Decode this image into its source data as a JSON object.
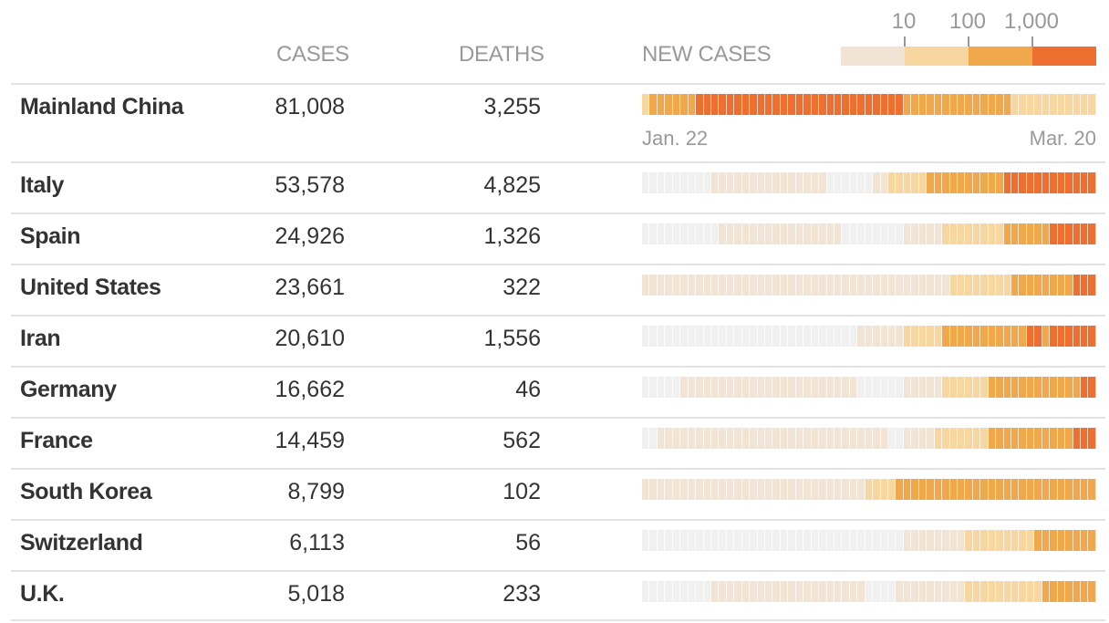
{
  "header": {
    "cases": "CASES",
    "deaths": "DEATHS",
    "new_cases": "NEW CASES"
  },
  "legend": {
    "labels": [
      "10",
      "100",
      "1,000"
    ],
    "colors": [
      "#f1e4d4",
      "#f8d6a0",
      "#f0a84a",
      "#ee7031"
    ]
  },
  "level_colors": [
    "#f0f0f0",
    "#f1e4d4",
    "#f8d6a0",
    "#f0a84a",
    "#ee7031"
  ],
  "date_start": "Jan. 22",
  "date_end": "Mar. 20",
  "chart_data": {
    "type": "heatmap",
    "title": "New cases",
    "x_range": [
      "Jan. 22",
      "Mar. 20"
    ],
    "levels": [
      "<1",
      "1-10",
      "10-100",
      "100-1,000",
      ">1,000"
    ],
    "rows": [
      {
        "country": "Mainland China",
        "cases": "81,008",
        "deaths": "3,255",
        "runs": [
          [
            2,
            1
          ],
          [
            3,
            6
          ],
          [
            4,
            27
          ],
          [
            3,
            14
          ],
          [
            2,
            11
          ]
        ]
      },
      {
        "country": "Italy",
        "cases": "53,578",
        "deaths": "4,825",
        "runs": [
          [
            0,
            9
          ],
          [
            1,
            15
          ],
          [
            0,
            6
          ],
          [
            1,
            2
          ],
          [
            2,
            5
          ],
          [
            3,
            10
          ],
          [
            4,
            12
          ]
        ]
      },
      {
        "country": "Spain",
        "cases": "24,926",
        "deaths": "1,326",
        "runs": [
          [
            0,
            10
          ],
          [
            1,
            16
          ],
          [
            0,
            8
          ],
          [
            1,
            5
          ],
          [
            2,
            8
          ],
          [
            3,
            6
          ],
          [
            4,
            6
          ]
        ]
      },
      {
        "country": "United States",
        "cases": "23,661",
        "deaths": "322",
        "runs": [
          [
            1,
            40
          ],
          [
            2,
            8
          ],
          [
            3,
            8
          ],
          [
            4,
            3
          ]
        ]
      },
      {
        "country": "Iran",
        "cases": "20,610",
        "deaths": "1,556",
        "runs": [
          [
            0,
            28
          ],
          [
            1,
            6
          ],
          [
            2,
            5
          ],
          [
            3,
            11
          ],
          [
            4,
            2
          ],
          [
            3,
            1
          ],
          [
            4,
            6
          ]
        ]
      },
      {
        "country": "Germany",
        "cases": "16,662",
        "deaths": "46",
        "runs": [
          [
            0,
            5
          ],
          [
            1,
            23
          ],
          [
            0,
            6
          ],
          [
            1,
            5
          ],
          [
            2,
            6
          ],
          [
            3,
            12
          ],
          [
            4,
            2
          ]
        ]
      },
      {
        "country": "France",
        "cases": "14,459",
        "deaths": "562",
        "runs": [
          [
            0,
            2
          ],
          [
            1,
            30
          ],
          [
            0,
            2
          ],
          [
            1,
            4
          ],
          [
            2,
            7
          ],
          [
            3,
            11
          ],
          [
            4,
            3
          ]
        ]
      },
      {
        "country": "South Korea",
        "cases": "8,799",
        "deaths": "102",
        "runs": [
          [
            1,
            29
          ],
          [
            2,
            4
          ],
          [
            3,
            26
          ]
        ]
      },
      {
        "country": "Switzerland",
        "cases": "6,113",
        "deaths": "56",
        "runs": [
          [
            0,
            34
          ],
          [
            1,
            8
          ],
          [
            2,
            9
          ],
          [
            3,
            8
          ]
        ]
      },
      {
        "country": "U.K.",
        "cases": "5,018",
        "deaths": "233",
        "runs": [
          [
            0,
            9
          ],
          [
            1,
            20
          ],
          [
            0,
            4
          ],
          [
            1,
            9
          ],
          [
            2,
            10
          ],
          [
            3,
            7
          ]
        ]
      }
    ]
  }
}
